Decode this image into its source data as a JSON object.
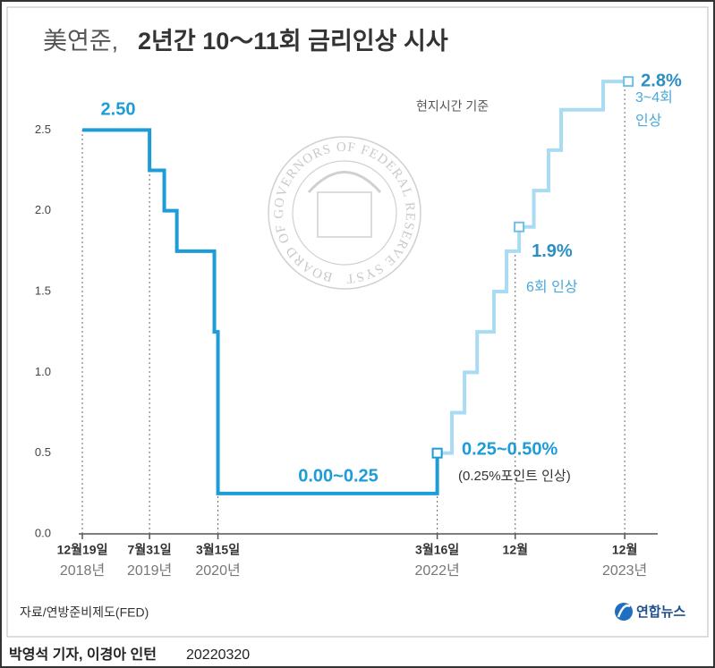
{
  "chart_data": {
    "type": "step",
    "title_prefix": "美연준,",
    "title": "2년간 10～11회 금리인상 시사",
    "note": "현지시간 기준",
    "seal_text": "BOARD OF GOVERNORS OF FEDERAL RESERVE SYSTEM",
    "xlim": [
      "2018-12-07",
      "2024-03-20"
    ],
    "xticks": [
      {
        "value": "2018-12-19",
        "label": "12월19일"
      },
      {
        "value": "2019-07-31",
        "label": "7월31일"
      },
      {
        "value": "2020-03-15",
        "label": "3월15일"
      },
      {
        "value": "2022-03-16",
        "label": "3월16일"
      },
      {
        "value": "2022-12",
        "label": "12월"
      },
      {
        "value": "2023-12",
        "label": "12월"
      }
    ],
    "xtick_years": [
      "2018년",
      "2019년",
      "2020년",
      "2022년",
      null,
      "2023년"
    ],
    "ylim": [
      0,
      3
    ],
    "yticks": [
      {
        "value": 0,
        "label": "0.0"
      },
      0.5,
      {
        "value": 1,
        "label": "1.0"
      },
      1.5,
      {
        "value": 2,
        "label": "2.0"
      },
      2.5
    ],
    "series": [
      {
        "color": "#1e9cd7",
        "x": [
          "2018-12-19",
          "2019-07-31",
          "2019-09-18",
          "2019-10-30",
          "2020-03-03",
          "2020-03-15",
          "2022-03-16"
        ],
        "values": [
          2.5,
          2.25,
          2.0,
          1.75,
          1.25,
          0.25,
          0.5
        ],
        "value_labels": [
          "2.50",
          null,
          null,
          null,
          null,
          null,
          null
        ]
      },
      {
        "color": "#a9dcf3",
        "x": [
          "2022-03-16",
          "2022-05-04",
          "2022-06-15",
          "2022-07-27",
          "2022-09-21",
          "2022-11-02",
          "2022-12-14",
          "2023-02-01",
          "2023-03-22",
          "2023-05-03",
          "2023-09-20",
          "2023-12-13"
        ],
        "values": [
          0.5,
          0.75,
          1.0,
          1.25,
          1.5,
          1.75,
          1.9,
          2.125,
          2.375,
          2.625,
          2.8,
          2.8
        ],
        "value_labels": [
          null,
          null,
          null,
          null,
          null,
          null,
          "1.9%",
          null,
          null,
          null,
          null,
          "2.8%"
        ]
      }
    ],
    "annotations": [
      "0.00~0.25",
      "0.25~0.50%",
      "(0.25%포인트 인상)",
      "6회 인상",
      "3~4회",
      "인상"
    ],
    "source": "자료/연방준비제도(FED)",
    "logo": "연합뉴스",
    "credit": "박영석 기자, 이경아 인턴",
    "date": "20220320"
  }
}
